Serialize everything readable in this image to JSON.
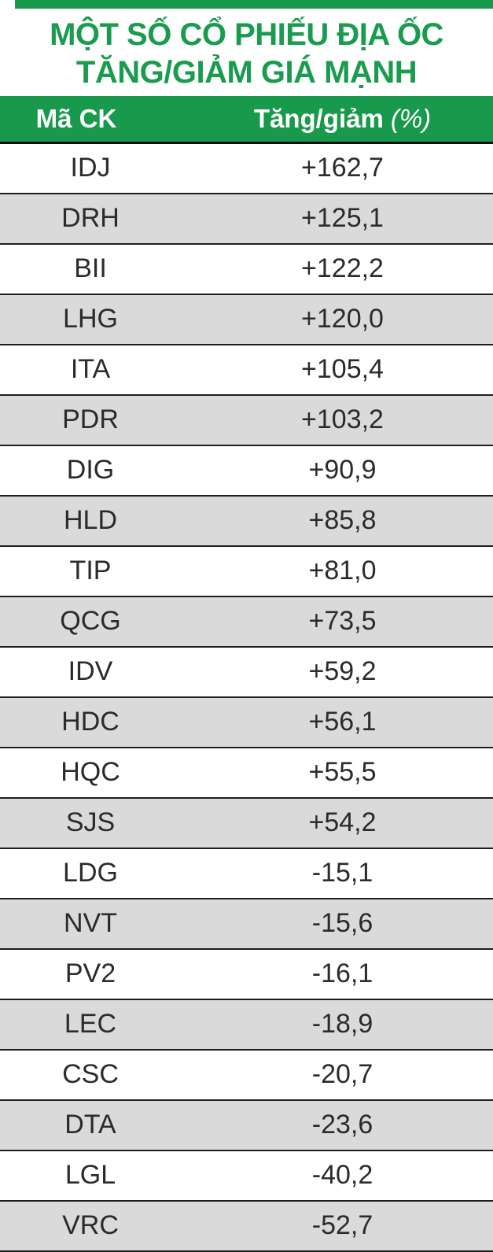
{
  "title": {
    "line1": "MỘT SỐ CỔ PHIẾU ĐỊA ỐC",
    "line2": "TĂNG/GIẢM GIÁ MẠNH"
  },
  "table": {
    "header": {
      "ticker": "Mã CK",
      "change_label": "Tăng/giảm",
      "change_unit": "(%)"
    }
  },
  "colors": {
    "green": "#18994b",
    "title_green": "#1a9c4f",
    "row_alt": "#dadada",
    "divider": "#1e1e1e",
    "text": "#2b2b2b",
    "header_text": "#ffffff"
  },
  "chart_data": {
    "type": "table",
    "title": "MỘT SỐ CỔ PHIẾU ĐỊA ỐC TĂNG/GIẢM GIÁ MẠNH",
    "columns": [
      "Mã CK",
      "Tăng/giảm (%)"
    ],
    "rows": [
      [
        "IDJ",
        "+162,7"
      ],
      [
        "DRH",
        "+125,1"
      ],
      [
        "BII",
        "+122,2"
      ],
      [
        "LHG",
        "+120,0"
      ],
      [
        "ITA",
        "+105,4"
      ],
      [
        "PDR",
        "+103,2"
      ],
      [
        "DIG",
        "+90,9"
      ],
      [
        "HLD",
        "+85,8"
      ],
      [
        "TIP",
        "+81,0"
      ],
      [
        "QCG",
        "+73,5"
      ],
      [
        "IDV",
        "+59,2"
      ],
      [
        "HDC",
        "+56,1"
      ],
      [
        "HQC",
        "+55,5"
      ],
      [
        "SJS",
        "+54,2"
      ],
      [
        "LDG",
        "-15,1"
      ],
      [
        "NVT",
        "-15,6"
      ],
      [
        "PV2",
        "-16,1"
      ],
      [
        "LEC",
        "-18,9"
      ],
      [
        "CSC",
        "-20,7"
      ],
      [
        "DTA",
        "-23,6"
      ],
      [
        "LGL",
        "-40,2"
      ],
      [
        "VRC",
        "-52,7"
      ]
    ]
  }
}
